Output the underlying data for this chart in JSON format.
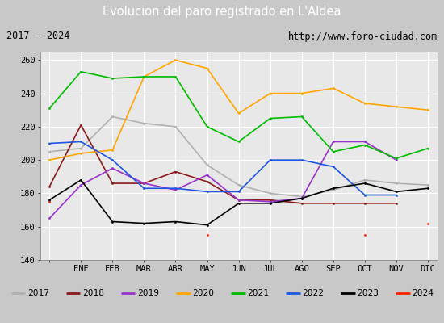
{
  "title": "Evolucion del paro registrado en L'Aldea",
  "subtitle_left": "2017 - 2024",
  "subtitle_right": "http://www.foro-ciudad.com",
  "ylim": [
    140,
    265
  ],
  "months": [
    "",
    "ENE",
    "FEB",
    "MAR",
    "ABR",
    "MAY",
    "JUN",
    "JUL",
    "AGO",
    "SEP",
    "OCT",
    "NOV",
    "DIC"
  ],
  "title_bg": "#5b8fd4",
  "title_color": "white",
  "plot_bg": "#e8e8e8",
  "fig_bg": "#c8c8c8",
  "years_order": [
    "2017",
    "2018",
    "2019",
    "2020",
    "2021",
    "2022",
    "2023",
    "2024"
  ],
  "colors": {
    "2017": "#b0b0b0",
    "2018": "#8b1a1a",
    "2019": "#9932cc",
    "2020": "#ffa500",
    "2021": "#00bb00",
    "2022": "#1e56e0",
    "2023": "#000000",
    "2024": "#ff2200"
  },
  "series": {
    "2017": [
      205,
      207,
      226,
      222,
      220,
      197,
      185,
      180,
      178,
      182,
      188,
      186,
      185
    ],
    "2018": [
      184,
      221,
      186,
      186,
      193,
      187,
      176,
      176,
      174,
      174,
      174,
      174,
      null
    ],
    "2019": [
      165,
      185,
      195,
      186,
      182,
      191,
      176,
      175,
      177,
      211,
      211,
      200,
      null
    ],
    "2020": [
      200,
      204,
      206,
      250,
      260,
      255,
      228,
      240,
      240,
      243,
      234,
      232,
      230
    ],
    "2021": [
      231,
      253,
      249,
      250,
      250,
      220,
      211,
      225,
      226,
      205,
      209,
      201,
      207
    ],
    "2022": [
      210,
      211,
      200,
      183,
      183,
      181,
      181,
      200,
      200,
      196,
      179,
      179,
      null
    ],
    "2023": [
      176,
      188,
      163,
      162,
      163,
      161,
      174,
      174,
      177,
      183,
      186,
      181,
      183
    ],
    "2024": [
      175,
      null,
      null,
      null,
      null,
      155,
      null,
      null,
      null,
      null,
      155,
      null,
      162
    ]
  }
}
